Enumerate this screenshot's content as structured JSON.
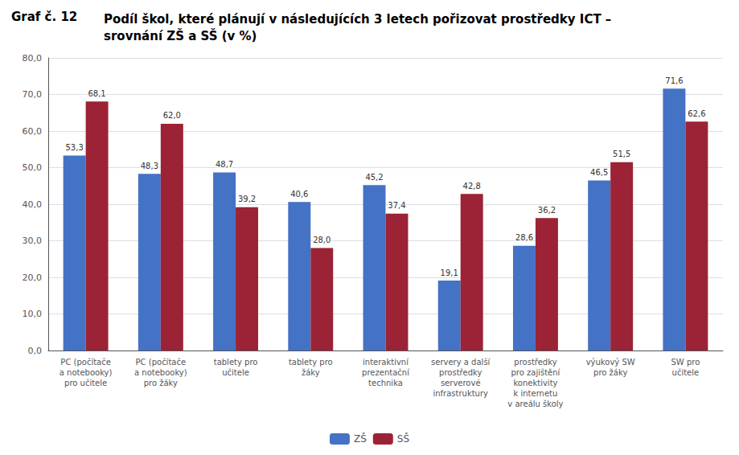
{
  "chart_data": {
    "type": "bar",
    "title": "Graf č. 12",
    "subtitle": "Podíl škol, které plánují v následujících 3 letech pořizovat prostředky ICT –\nsrovnání ZŠ a SŠ (v %)",
    "categories": [
      "PC (počítače\na notebooky)\npro učitele",
      "PC (počítače\na notebooky)\npro žáky",
      "tablety pro\nučitele",
      "tablety pro\nžáky",
      "interaktivní\nprezentační\ntechnika",
      "servery a další\nprostředky\nserverové\ninfrastruktury",
      "prostředky\npro zajištění\nkonektivity\nk internetu\nv areálu školy",
      "výukový SW\npro žáky",
      "SW pro\nučitele"
    ],
    "series": [
      {
        "name": "ZŠ",
        "color": "#4472C4",
        "values": [
          53.3,
          48.3,
          48.7,
          40.6,
          45.2,
          19.1,
          28.6,
          46.5,
          71.6
        ],
        "value_labels": [
          "53,3",
          "48,3",
          "48,7",
          "40,6",
          "45,2",
          "19,1",
          "28,6",
          "46,5",
          "71,6"
        ]
      },
      {
        "name": "SŠ",
        "color": "#9B2335",
        "values": [
          68.1,
          62.0,
          39.2,
          28.0,
          37.4,
          42.8,
          36.2,
          51.5,
          62.6
        ],
        "value_labels": [
          "68,1",
          "62,0",
          "39,2",
          "28,0",
          "37,4",
          "42,8",
          "36,2",
          "51,5",
          "62,6"
        ]
      }
    ],
    "ylim": [
      0,
      80
    ],
    "yticks": [
      {
        "value": 0,
        "label": "0,0"
      },
      {
        "value": 10,
        "label": "10,0"
      },
      {
        "value": 20,
        "label": "20,0"
      },
      {
        "value": 30,
        "label": "30,0"
      },
      {
        "value": 40,
        "label": "40,0"
      },
      {
        "value": 50,
        "label": "50,0"
      },
      {
        "value": 60,
        "label": "60,0"
      },
      {
        "value": 70,
        "label": "70,0"
      },
      {
        "value": 80,
        "label": "80,0"
      }
    ],
    "grid": true,
    "legend": "bottom",
    "data_labels": true
  }
}
